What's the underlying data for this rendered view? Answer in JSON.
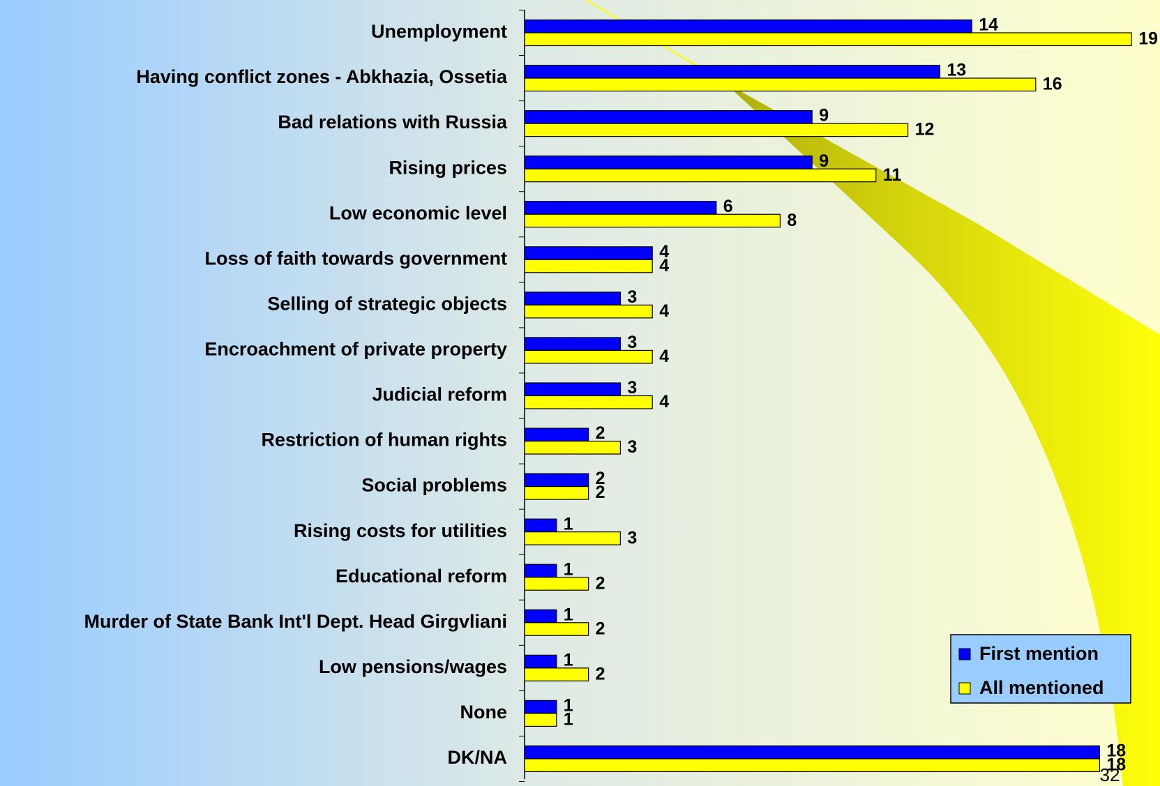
{
  "chart_data": {
    "type": "hbar",
    "categories": [
      "Unemployment",
      "Having conflict zones - Abkhazia, Ossetia",
      "Bad relations with Russia",
      "Rising prices",
      "Low economic level",
      "Loss of faith towards government",
      "Selling of strategic objects",
      "Encroachment of private property",
      "Judicial reform",
      "Restriction of human rights",
      "Social problems",
      "Rising costs for utilities",
      "Educational reform",
      "Murder of State Bank Int'l Dept. Head Girgvliani",
      "Low pensions/wages",
      "None",
      "DK/NA"
    ],
    "series": [
      {
        "name": "First mention",
        "color": "#0000ff",
        "values": [
          14,
          13,
          9,
          9,
          6,
          4,
          3,
          3,
          3,
          2,
          2,
          1,
          1,
          1,
          1,
          1,
          18
        ]
      },
      {
        "name": "All mentioned",
        "color": "#ffff00",
        "values": [
          19,
          16,
          12,
          11,
          8,
          4,
          4,
          4,
          4,
          3,
          2,
          3,
          2,
          2,
          2,
          1,
          18
        ]
      }
    ],
    "annotation": "32",
    "xlim": [
      0,
      20
    ]
  }
}
